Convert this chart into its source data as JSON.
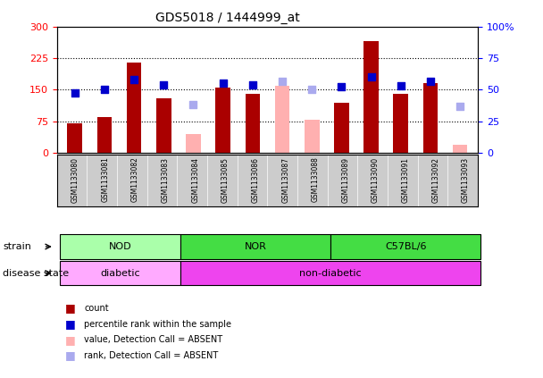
{
  "title": "GDS5018 / 1444999_at",
  "samples": [
    "GSM1133080",
    "GSM1133081",
    "GSM1133082",
    "GSM1133083",
    "GSM1133084",
    "GSM1133085",
    "GSM1133086",
    "GSM1133087",
    "GSM1133088",
    "GSM1133089",
    "GSM1133090",
    "GSM1133091",
    "GSM1133092",
    "GSM1133093"
  ],
  "count_values": [
    70,
    85,
    215,
    130,
    null,
    155,
    140,
    null,
    null,
    120,
    265,
    140,
    165,
    null
  ],
  "count_absent": [
    null,
    null,
    null,
    null,
    45,
    null,
    null,
    160,
    80,
    null,
    null,
    null,
    null,
    20
  ],
  "percentile_values": [
    143,
    150,
    175,
    162,
    null,
    165,
    162,
    null,
    null,
    157,
    180,
    160,
    170,
    null
  ],
  "percentile_absent": [
    null,
    null,
    null,
    null,
    115,
    null,
    null,
    170,
    150,
    null,
    null,
    null,
    null,
    110
  ],
  "ylim_left": [
    0,
    300
  ],
  "ylim_right": [
    0,
    100
  ],
  "yticks_left": [
    0,
    75,
    150,
    225,
    300
  ],
  "yticks_right": [
    0,
    25,
    50,
    75,
    100
  ],
  "strain_groups": [
    {
      "label": "NOD",
      "start": 0,
      "end": 3,
      "color": "#AAFFAA"
    },
    {
      "label": "NOR",
      "start": 4,
      "end": 8,
      "color": "#44DD44"
    },
    {
      "label": "C57BL/6",
      "start": 9,
      "end": 13,
      "color": "#44DD44"
    }
  ],
  "disease_groups": [
    {
      "label": "diabetic",
      "start": 0,
      "end": 3,
      "color": "#FFAAFF"
    },
    {
      "label": "non-diabetic",
      "start": 4,
      "end": 13,
      "color": "#EE44EE"
    }
  ],
  "bar_color_present": "#AA0000",
  "bar_color_absent": "#FFB0B0",
  "dot_color_present": "#0000CC",
  "dot_color_absent": "#AAAAEE",
  "xticklabel_bg": "#CCCCCC",
  "legend_items": [
    {
      "color": "#AA0000",
      "label": "count"
    },
    {
      "color": "#0000CC",
      "label": "percentile rank within the sample"
    },
    {
      "color": "#FFB0B0",
      "label": "value, Detection Call = ABSENT"
    },
    {
      "color": "#AAAAEE",
      "label": "rank, Detection Call = ABSENT"
    }
  ]
}
